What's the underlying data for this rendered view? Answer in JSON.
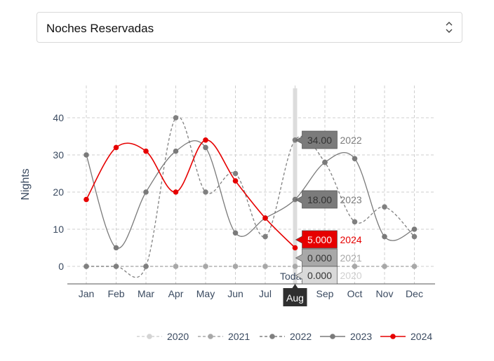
{
  "selector": {
    "value": "Noches Reservadas",
    "icon": "up-down-chevron-icon"
  },
  "chart_data": {
    "type": "line",
    "ylabel": "Nights",
    "xlabel": "",
    "categories": [
      "Jan",
      "Feb",
      "Mar",
      "Apr",
      "May",
      "Jun",
      "Jul",
      "Aug",
      "Sep",
      "Oct",
      "Nov",
      "Dec"
    ],
    "ylim": [
      -5,
      45
    ],
    "yticks": [
      0,
      10,
      20,
      30,
      40
    ],
    "grid": true,
    "legend_position": "bottom",
    "highlighted_category": "Aug",
    "today_marker": "Today",
    "series": [
      {
        "name": "2020",
        "values": [
          0,
          0,
          0,
          0,
          0,
          0,
          0,
          0,
          0,
          0,
          0,
          0
        ],
        "color": "#d4d4d4",
        "dashed": true
      },
      {
        "name": "2021",
        "values": [
          0,
          0,
          0,
          0,
          0,
          0,
          0,
          0,
          0,
          0,
          0,
          0
        ],
        "color": "#a8a8a8",
        "dashed": true
      },
      {
        "name": "2022",
        "values": [
          0,
          0,
          0,
          40,
          20,
          25,
          8,
          34,
          28,
          12,
          16,
          8
        ],
        "color": "#808080",
        "dashed": true
      },
      {
        "name": "2023",
        "values": [
          30,
          5,
          20,
          31,
          32,
          9,
          13,
          18,
          28,
          29,
          8,
          10
        ],
        "color": "#7a7a7a",
        "dashed": false
      },
      {
        "name": "2024",
        "values": [
          18,
          32,
          31,
          20,
          34,
          23,
          13,
          5,
          null,
          null,
          null,
          null
        ],
        "color": "#e60000",
        "dashed": false
      }
    ],
    "tooltips": [
      {
        "series": "2022",
        "value_text": "34.00",
        "label": "2022",
        "box_color": "#7b7b7b",
        "text_color": "#7b7b7b"
      },
      {
        "series": "2023",
        "value_text": "18.00",
        "label": "2023",
        "box_color": "#7b7b7b",
        "text_color": "#7b7b7b"
      },
      {
        "series": "2024",
        "value_text": "5.000",
        "label": "2024",
        "box_color": "#e60000",
        "text_color": "#e60000"
      },
      {
        "series": "2021",
        "value_text": "0.000",
        "label": "2021",
        "box_color": "#a8a8a8",
        "text_color": "#a8a8a8"
      },
      {
        "series": "2020",
        "value_text": "0.000",
        "label": "2020",
        "box_color": "#d9d9d9",
        "text_color": "#d0d0d0"
      }
    ]
  }
}
